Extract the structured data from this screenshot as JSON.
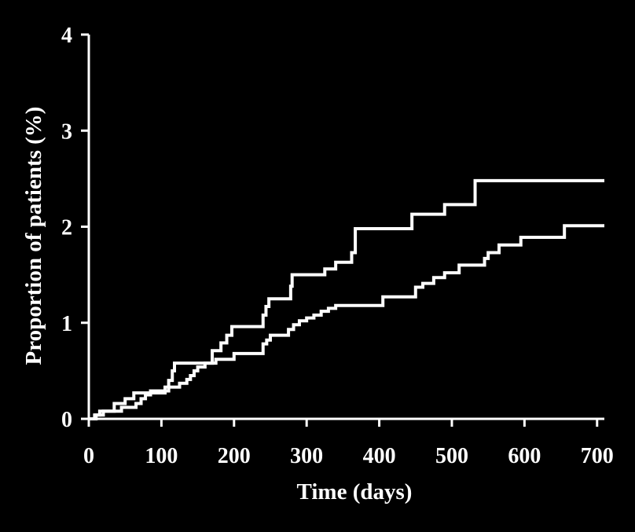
{
  "colors": {
    "background": "#000000",
    "foreground": "#ffffff"
  },
  "chart_data": {
    "type": "line",
    "step": true,
    "title": "",
    "xlabel": "Time (days)",
    "ylabel": "Proportion of patients (%)",
    "xlim": [
      0,
      710
    ],
    "ylim": [
      0,
      4
    ],
    "xticks": [
      0,
      100,
      200,
      300,
      400,
      500,
      600,
      700
    ],
    "yticks": [
      0,
      1,
      2,
      3,
      4
    ],
    "grid": false,
    "legend": "none",
    "series": [
      {
        "color": "#ffffff",
        "x": [
          0,
          8,
          15,
          35,
          50,
          62,
          105,
          110,
          115,
          118,
          170,
          182,
          190,
          197,
          240,
          244,
          248,
          278,
          280,
          325,
          340,
          362,
          367,
          445,
          490,
          532,
          710
        ],
        "y": [
          0,
          0.04,
          0.08,
          0.16,
          0.21,
          0.27,
          0.33,
          0.4,
          0.5,
          0.58,
          0.71,
          0.79,
          0.87,
          0.96,
          1.08,
          1.17,
          1.25,
          1.38,
          1.5,
          1.56,
          1.63,
          1.73,
          1.98,
          2.13,
          2.23,
          2.48,
          2.48
        ]
      },
      {
        "color": "#ffffff",
        "x": [
          0,
          10,
          20,
          45,
          65,
          72,
          78,
          85,
          110,
          125,
          135,
          140,
          145,
          150,
          160,
          175,
          200,
          240,
          245,
          250,
          275,
          282,
          290,
          300,
          310,
          320,
          330,
          340,
          405,
          450,
          460,
          475,
          490,
          510,
          545,
          550,
          565,
          595,
          655,
          710
        ],
        "y": [
          0,
          0.04,
          0.08,
          0.12,
          0.16,
          0.21,
          0.25,
          0.29,
          0.33,
          0.37,
          0.41,
          0.45,
          0.5,
          0.54,
          0.58,
          0.62,
          0.68,
          0.78,
          0.82,
          0.87,
          0.93,
          0.98,
          1.02,
          1.05,
          1.08,
          1.12,
          1.15,
          1.18,
          1.27,
          1.37,
          1.41,
          1.47,
          1.52,
          1.6,
          1.67,
          1.73,
          1.81,
          1.89,
          2.01,
          2.01
        ]
      }
    ]
  }
}
